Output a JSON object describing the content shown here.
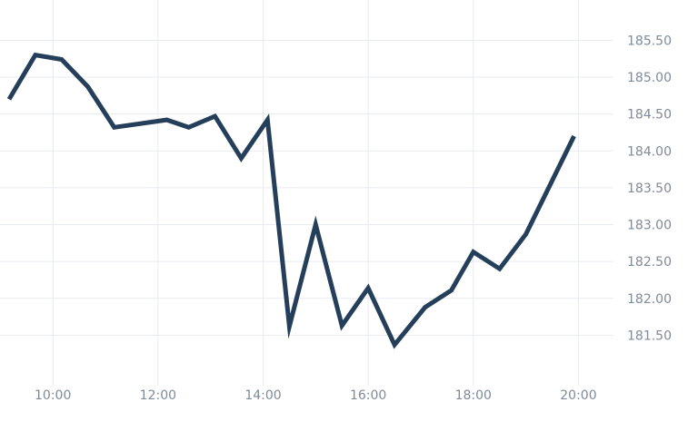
{
  "chart_data": {
    "type": "line",
    "title": "",
    "xlabel": "",
    "ylabel": "",
    "x_ticks": [
      "10:00",
      "12:00",
      "14:00",
      "16:00",
      "18:00",
      "20:00"
    ],
    "y_ticks": [
      "181.50",
      "182.00",
      "182.50",
      "183.00",
      "183.50",
      "184.00",
      "184.50",
      "185.00",
      "185.50"
    ],
    "xlim": [
      "09:10",
      "20:40"
    ],
    "ylim": [
      181.0,
      185.8
    ],
    "grid": true,
    "legend": "none",
    "series": [
      {
        "color": "#253f5b",
        "points": [
          {
            "x": "09:10",
            "y": 184.7
          },
          {
            "x": "09:40",
            "y": 185.3
          },
          {
            "x": "10:10",
            "y": 185.24
          },
          {
            "x": "10:40",
            "y": 184.87
          },
          {
            "x": "11:10",
            "y": 184.32
          },
          {
            "x": "12:10",
            "y": 184.42
          },
          {
            "x": "12:35",
            "y": 184.32
          },
          {
            "x": "13:05",
            "y": 184.47
          },
          {
            "x": "13:35",
            "y": 183.9
          },
          {
            "x": "14:05",
            "y": 184.42
          },
          {
            "x": "14:30",
            "y": 181.62
          },
          {
            "x": "15:00",
            "y": 183.0
          },
          {
            "x": "15:30",
            "y": 181.63
          },
          {
            "x": "16:00",
            "y": 182.14
          },
          {
            "x": "16:30",
            "y": 181.37
          },
          {
            "x": "17:05",
            "y": 181.88
          },
          {
            "x": "17:35",
            "y": 182.11
          },
          {
            "x": "18:00",
            "y": 182.63
          },
          {
            "x": "18:30",
            "y": 182.4
          },
          {
            "x": "19:00",
            "y": 182.87
          },
          {
            "x": "19:55",
            "y": 184.2
          }
        ]
      }
    ],
    "colors": {
      "line": "#253f5b",
      "grid": "#e8ebef",
      "tick_text": "#7f8a9a"
    }
  }
}
